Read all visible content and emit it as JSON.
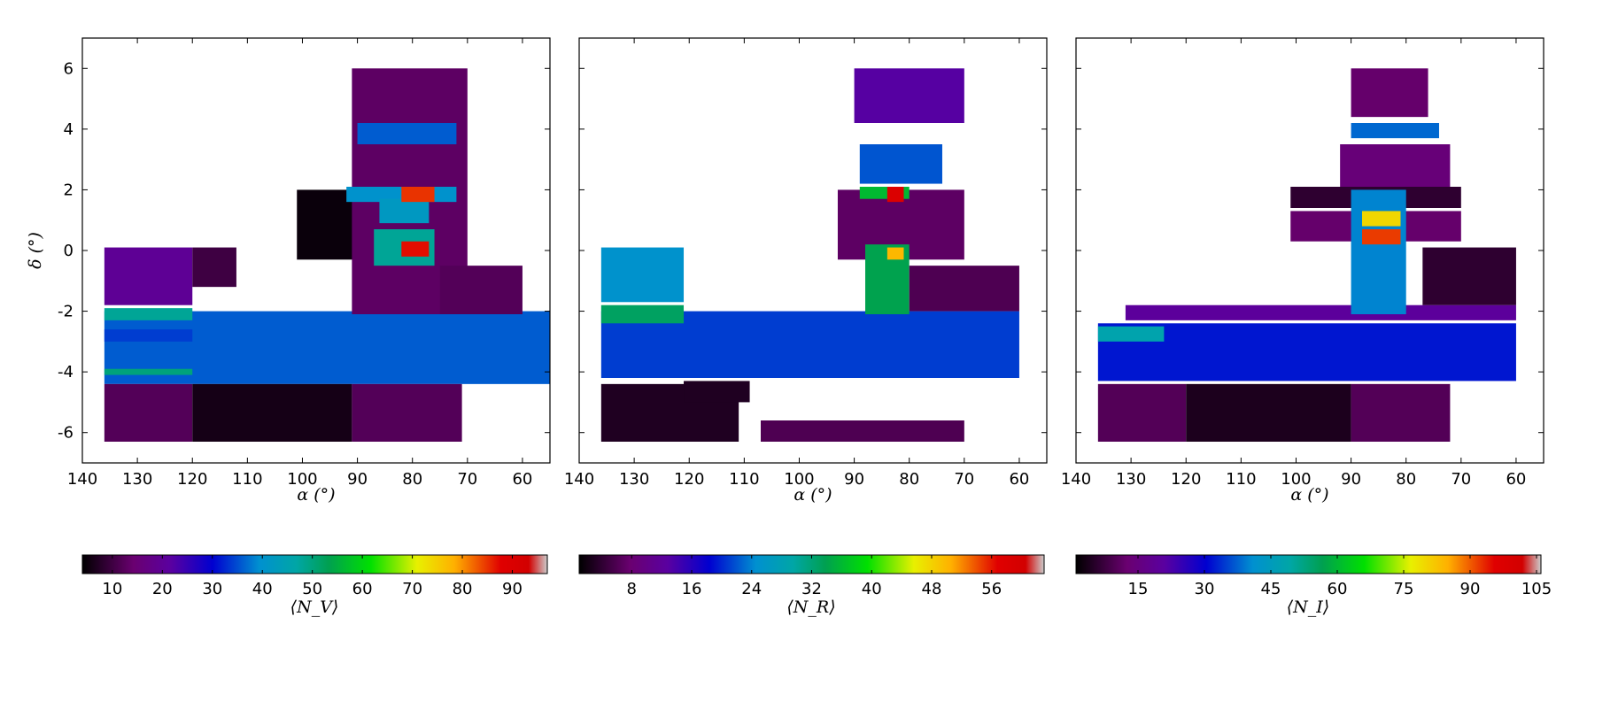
{
  "chart_data": [
    {
      "type": "heatmap",
      "panel": "left",
      "xlabel": "α (°)",
      "ylabel": "δ (°)",
      "xlim": [
        140,
        55
      ],
      "ylim": [
        -7,
        7
      ],
      "xticks": [
        140,
        130,
        120,
        110,
        100,
        90,
        80,
        70,
        60
      ],
      "yticks": [
        -6,
        -4,
        -2,
        0,
        2,
        4,
        6
      ],
      "colorbar": {
        "label": "⟨N_V⟩",
        "range": [
          4,
          97
        ],
        "ticks": [
          10,
          20,
          30,
          40,
          50,
          60,
          70,
          80,
          90
        ]
      },
      "regions": [
        {
          "x": [
            136,
            55
          ],
          "y": [
            -2.0,
            -4.4
          ],
          "value": 36
        },
        {
          "x": [
            136,
            120
          ],
          "y": [
            -1.9,
            -2.3
          ],
          "value": 48
        },
        {
          "x": [
            136,
            120
          ],
          "y": [
            -3.9,
            -4.1
          ],
          "value": 50
        },
        {
          "x": [
            136,
            120
          ],
          "y": [
            -2.6,
            -3.0
          ],
          "value": 34
        },
        {
          "x": [
            136,
            120
          ],
          "y": [
            0.1,
            -1.8
          ],
          "value": 20
        },
        {
          "x": [
            136,
            120
          ],
          "y": [
            -4.4,
            -6.3
          ],
          "value": 12
        },
        {
          "x": [
            120,
            112
          ],
          "y": [
            0.1,
            -1.2
          ],
          "value": 10
        },
        {
          "x": [
            120,
            91
          ],
          "y": [
            -4.4,
            -6.3
          ],
          "value": 6
        },
        {
          "x": [
            91,
            71
          ],
          "y": [
            -4.4,
            -6.3
          ],
          "value": 12
        },
        {
          "x": [
            101,
            90
          ],
          "y": [
            2.0,
            -0.3
          ],
          "value": 5
        },
        {
          "x": [
            91,
            70
          ],
          "y": [
            6.0,
            -2.1
          ],
          "value": 13
        },
        {
          "x": [
            90,
            72
          ],
          "y": [
            4.2,
            3.5
          ],
          "value": 36
        },
        {
          "x": [
            92,
            72
          ],
          "y": [
            2.1,
            1.6
          ],
          "value": 40
        },
        {
          "x": [
            86,
            77
          ],
          "y": [
            1.7,
            0.9
          ],
          "value": 42
        },
        {
          "x": [
            87,
            76
          ],
          "y": [
            0.7,
            -0.5
          ],
          "value": 48
        },
        {
          "x": [
            82,
            76
          ],
          "y": [
            2.1,
            1.6
          ],
          "value": 85
        },
        {
          "x": [
            82,
            77
          ],
          "y": [
            0.3,
            -0.2
          ],
          "value": 87
        },
        {
          "x": [
            75,
            60
          ],
          "y": [
            -0.5,
            -2.1
          ],
          "value": 12
        }
      ]
    },
    {
      "type": "heatmap",
      "panel": "middle",
      "xlabel": "α (°)",
      "xlim": [
        140,
        55
      ],
      "ylim": [
        -7,
        7
      ],
      "xticks": [
        140,
        130,
        120,
        110,
        100,
        90,
        80,
        70,
        60
      ],
      "colorbar": {
        "label": "⟨N_R⟩",
        "range": [
          1,
          63
        ],
        "ticks": [
          8,
          16,
          24,
          32,
          40,
          48,
          56
        ]
      },
      "regions": [
        {
          "x": [
            136,
            60
          ],
          "y": [
            -2.0,
            -4.2
          ],
          "value": 21
        },
        {
          "x": [
            136,
            121
          ],
          "y": [
            0.1,
            -1.7
          ],
          "value": 25
        },
        {
          "x": [
            136,
            121
          ],
          "y": [
            -1.8,
            -2.4
          ],
          "value": 33
        },
        {
          "x": [
            136,
            111
          ],
          "y": [
            -4.4,
            -6.3
          ],
          "value": 3
        },
        {
          "x": [
            121,
            109
          ],
          "y": [
            -4.3,
            -5.0
          ],
          "value": 3
        },
        {
          "x": [
            107,
            70
          ],
          "y": [
            -5.6,
            -6.3
          ],
          "value": 6
        },
        {
          "x": [
            93,
            70
          ],
          "y": [
            2.0,
            -0.3
          ],
          "value": 7
        },
        {
          "x": [
            90,
            70
          ],
          "y": [
            6.0,
            4.2
          ],
          "value": 13
        },
        {
          "x": [
            89,
            74
          ],
          "y": [
            3.5,
            2.2
          ],
          "value": 22
        },
        {
          "x": [
            89,
            80
          ],
          "y": [
            2.1,
            1.7
          ],
          "value": 36
        },
        {
          "x": [
            88,
            80
          ],
          "y": [
            0.2,
            -2.1
          ],
          "value": 34
        },
        {
          "x": [
            84,
            81
          ],
          "y": [
            2.1,
            1.6
          ],
          "value": 58
        },
        {
          "x": [
            84,
            81
          ],
          "y": [
            0.1,
            -0.3
          ],
          "value": 50
        },
        {
          "x": [
            80,
            60
          ],
          "y": [
            -0.5,
            -2.0
          ],
          "value": 6
        }
      ]
    },
    {
      "type": "heatmap",
      "panel": "right",
      "xlabel": "α (°)",
      "xlim": [
        140,
        55
      ],
      "ylim": [
        -7,
        7
      ],
      "xticks": [
        140,
        130,
        120,
        110,
        100,
        90,
        80,
        70,
        60
      ],
      "colorbar": {
        "label": "⟨N_I⟩",
        "range": [
          1,
          106
        ],
        "ticks": [
          15,
          30,
          45,
          60,
          75,
          90,
          105
        ]
      },
      "regions": [
        {
          "x": [
            136,
            60
          ],
          "y": [
            -2.4,
            -4.3
          ],
          "value": 32
        },
        {
          "x": [
            136,
            124
          ],
          "y": [
            -2.5,
            -3.0
          ],
          "value": 48
        },
        {
          "x": [
            131,
            60
          ],
          "y": [
            -1.8,
            -2.3
          ],
          "value": 20
        },
        {
          "x": [
            136,
            120
          ],
          "y": [
            -4.4,
            -6.3
          ],
          "value": 10
        },
        {
          "x": [
            120,
            90
          ],
          "y": [
            -4.4,
            -6.3
          ],
          "value": 4
        },
        {
          "x": [
            90,
            72
          ],
          "y": [
            -4.4,
            -6.3
          ],
          "value": 10
        },
        {
          "x": [
            90,
            76
          ],
          "y": [
            6.0,
            4.4
          ],
          "value": 12
        },
        {
          "x": [
            90,
            74
          ],
          "y": [
            4.2,
            3.7
          ],
          "value": 38
        },
        {
          "x": [
            92,
            72
          ],
          "y": [
            3.5,
            2.1
          ],
          "value": 14
        },
        {
          "x": [
            101,
            70
          ],
          "y": [
            2.1,
            1.4
          ],
          "value": 6
        },
        {
          "x": [
            101,
            70
          ],
          "y": [
            1.3,
            0.3
          ],
          "value": 12
        },
        {
          "x": [
            90,
            80
          ],
          "y": [
            2.0,
            -2.1
          ],
          "value": 40
        },
        {
          "x": [
            88,
            81
          ],
          "y": [
            1.3,
            0.8
          ],
          "value": 80
        },
        {
          "x": [
            88,
            81
          ],
          "y": [
            0.7,
            0.2
          ],
          "value": 92
        },
        {
          "x": [
            77,
            60
          ],
          "y": [
            0.1,
            -1.8
          ],
          "value": 6
        }
      ]
    }
  ]
}
